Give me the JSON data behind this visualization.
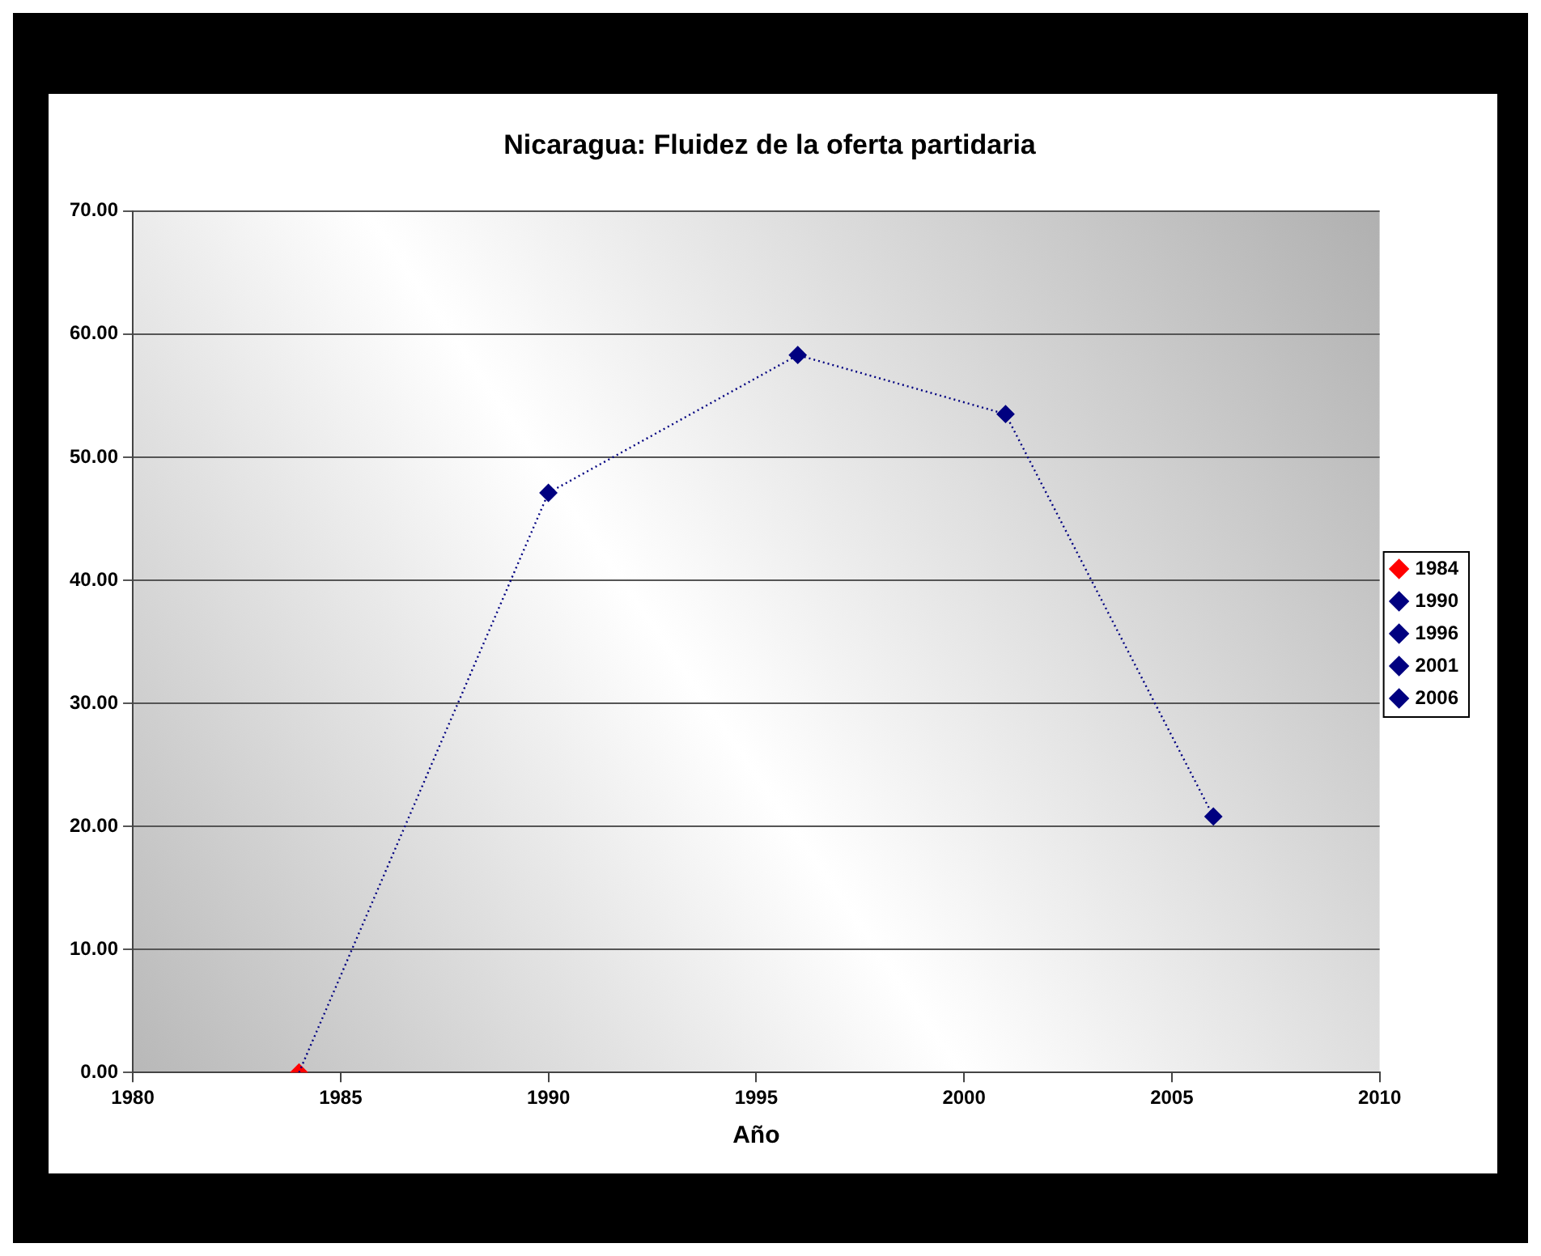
{
  "chart_data": {
    "type": "scatter",
    "title": "Nicaragua: Fluidez de la oferta partidaria",
    "xlabel": "Año",
    "marker": "diamond",
    "grid": "y",
    "legend": "right",
    "xlim": [
      1980,
      2010
    ],
    "xticks": [
      1980,
      1985,
      1990,
      1995,
      2000,
      2005,
      2010
    ],
    "ylim": [
      0,
      70
    ],
    "yticks": [
      {
        "value": 0,
        "label": "0.00"
      },
      {
        "value": 10,
        "label": "10.00"
      },
      {
        "value": 20,
        "label": "20.00"
      },
      {
        "value": 30,
        "label": "30.00"
      },
      {
        "value": 40,
        "label": "40.00"
      },
      {
        "value": 50,
        "label": "50.00"
      },
      {
        "value": 60,
        "label": "60.00"
      },
      {
        "value": 70,
        "label": "70.00"
      }
    ],
    "series": [
      {
        "type": "line",
        "color": "#000080",
        "line_style": "dotted",
        "marker": "none",
        "x": [
          1984,
          1990,
          1996,
          2001,
          2006
        ],
        "values": [
          0,
          47.1,
          58.3,
          53.5,
          20.8
        ]
      },
      {
        "name": "1984",
        "color": "#ff0000",
        "x": [
          1984
        ],
        "values": [
          0
        ]
      },
      {
        "name": "1990",
        "color": "#000080",
        "x": [
          1990
        ],
        "values": [
          47.1
        ]
      },
      {
        "name": "1996",
        "color": "#000080",
        "x": [
          1996
        ],
        "values": [
          58.3
        ]
      },
      {
        "name": "2001",
        "color": "#000080",
        "x": [
          2001
        ],
        "values": [
          53.5
        ]
      },
      {
        "name": "2006",
        "color": "#000080",
        "x": [
          2006
        ],
        "values": [
          20.8
        ]
      }
    ]
  }
}
